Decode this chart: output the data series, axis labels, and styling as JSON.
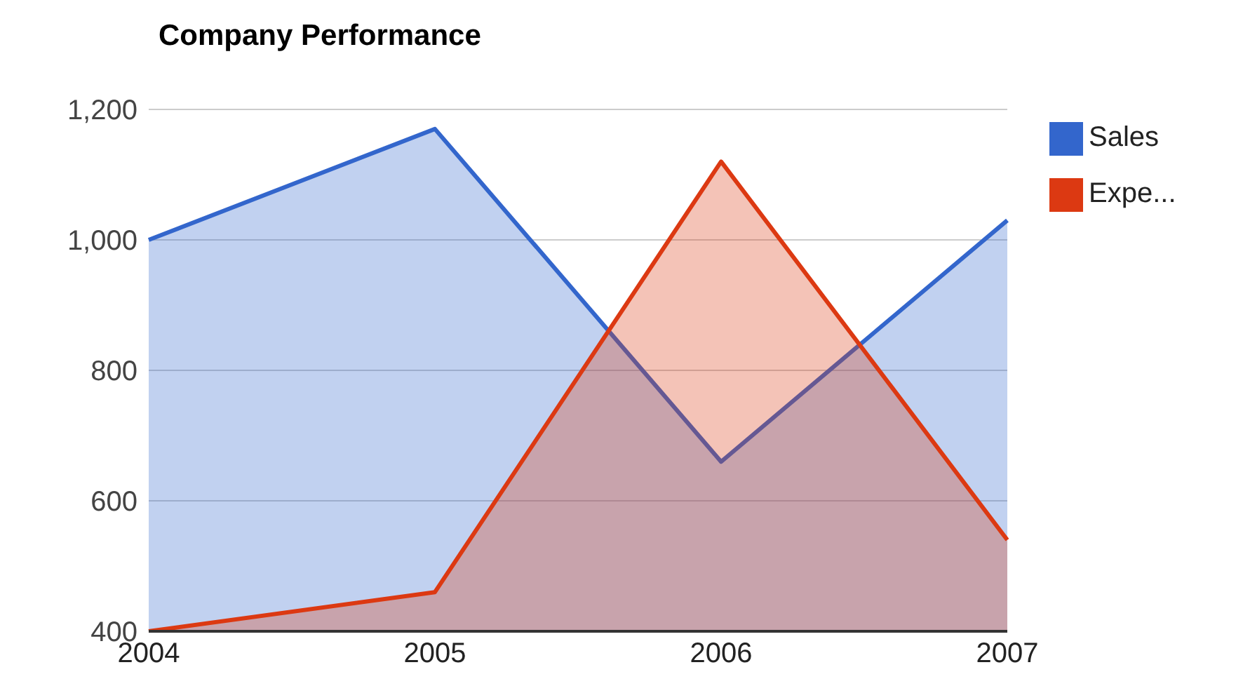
{
  "chart_data": {
    "type": "area",
    "title": "Company Performance",
    "categories": [
      "2004",
      "2005",
      "2006",
      "2007"
    ],
    "series": [
      {
        "name": "Sales",
        "color": "#3366cc",
        "values": [
          1000,
          1170,
          660,
          1030
        ]
      },
      {
        "name": "Expe...",
        "color": "#dc3912",
        "values": [
          400,
          460,
          1120,
          540
        ]
      }
    ],
    "ylim": [
      400,
      1200
    ],
    "yticks": [
      400,
      600,
      800,
      {
        "value": 1000,
        "label": "1,000"
      },
      {
        "value": 1200,
        "label": "1,200"
      }
    ],
    "grid": "y",
    "legend": "top right"
  }
}
